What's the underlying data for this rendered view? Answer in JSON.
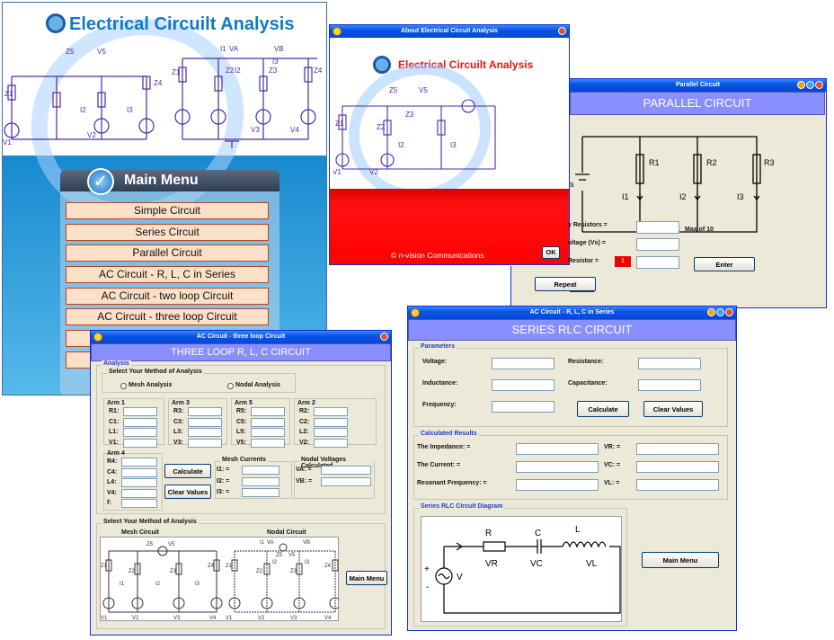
{
  "main": {
    "title": "Electrical Circuilt Analysis",
    "menu_title": "Main Menu",
    "items": [
      "Simple Circuit",
      "Series Circuit",
      "Parallel Circuit",
      "AC Circuit -  R, L, C in Series",
      "AC Circuit -  two loop Circuit",
      "AC Circuit -  three loop Circuit"
    ],
    "circuit": [
      "Z1",
      "Z5",
      "V5",
      "Z4",
      "I1",
      "VA",
      "VB",
      "I2",
      "I3",
      "Z2",
      "Z3",
      "Z4",
      "Z1",
      "V1",
      "V2",
      "V3",
      "V4",
      "I2",
      "I3"
    ]
  },
  "about": {
    "title": "About Electrical Circuit Analysis",
    "logo": "Electrical Circuilt Analysis",
    "footer": "© n-vision Communications",
    "ok": "OK",
    "circuit": [
      "Z1",
      "Z5",
      "V5",
      "Z2",
      "Z3",
      "I2",
      "I3",
      "V1",
      "V2"
    ]
  },
  "parallel": {
    "title": "Parallel Circuit",
    "heading": "PARALLEL CIRCUIT",
    "resistors": [
      "R1",
      "R2",
      "R3"
    ],
    "currents": [
      "I1",
      "I2",
      "I3"
    ],
    "vs": "s",
    "lbl_count": "y Resistors =",
    "lbl_max": "Max of 10",
    "lbl_voltage": "oltage (Vs) =",
    "lbl_resistor": "Resistor =",
    "resistor_value": "1",
    "enter": "Enter",
    "repeat": "Repeat"
  },
  "three": {
    "title": "AC Circuit - three loop Circuit",
    "heading": "THREE LOOP R, L, C CIRCUIT",
    "analysis": "Analysis",
    "method": "Select Your Method of Analysis",
    "mesh": "Mesh Analysis",
    "nodal": "Nodal Analysis",
    "arms": [
      {
        "name": "Arm 1",
        "rows": [
          "R1:",
          "C1:",
          "L1:",
          "V1:"
        ]
      },
      {
        "name": "Arm 3",
        "rows": [
          "R3:",
          "C3:",
          "L3:",
          "V3:"
        ]
      },
      {
        "name": "Arm 5",
        "rows": [
          "R5:",
          "C5:",
          "L5:",
          "V5:"
        ]
      },
      {
        "name": "Arm 2",
        "rows": [
          "R2:",
          "C2:",
          "L2:",
          "V2:"
        ]
      }
    ],
    "arm4": {
      "name": "Arm 4",
      "rows": [
        "R4:",
        "C4:",
        "L4:",
        "V4:",
        "f:"
      ]
    },
    "calculate": "Calculate",
    "clear": "Clear Values",
    "mesh_currents": "Mesh Currents",
    "mesh_rows": [
      "I1:  =",
      "I2:  =",
      "I3:  ="
    ],
    "nodal_title": "Nodal Voltages Calculated",
    "nodal_rows": [
      "VA:  =",
      "VB:  ="
    ],
    "method2": "Select Your Method of Analysis",
    "mesh_circuit": "Mesh Circuit",
    "nodal_circuit": "Nodal Circuit",
    "main_menu": "Main Menu",
    "labels": [
      "Z5",
      "V5",
      "Z1",
      "Z2",
      "Z3",
      "Z4",
      "I1",
      "I2",
      "I3",
      "V1",
      "V2",
      "V3",
      "V4",
      "I1",
      "VA",
      "VB",
      "Z5",
      "V5",
      "Z1",
      "Z2",
      "Z3",
      "Z4",
      "I2",
      "I3",
      "V1",
      "V2",
      "V3",
      "V4"
    ]
  },
  "series": {
    "title": "AC Circuit - R, L, C in Series",
    "heading": "SERIES RLC CIRCUIT",
    "parameters": "Parameters",
    "voltage": "Voltage:",
    "inductance": "Inductance:",
    "frequency": "Frequency:",
    "resistance": "Resistance:",
    "capacitance": "Capacitance:",
    "calculate": "Calculate",
    "clear": "Clear Values",
    "results": "Calculated Results",
    "impedance": "The Impedance:  =",
    "current": "The Current:  =",
    "resonant": "Resonant Frequency:  =",
    "vr": "VR:  =",
    "vc": "VC:  =",
    "vl": "VL:  =",
    "diagram": "Series RLC Circuit Diagram",
    "r": "R",
    "c": "C",
    "l": "L",
    "vr_lbl": "VR",
    "vc_lbl": "VC",
    "vl_lbl": "VL",
    "v": "V",
    "plus": "+",
    "minus": "-",
    "main_menu": "Main Menu"
  }
}
